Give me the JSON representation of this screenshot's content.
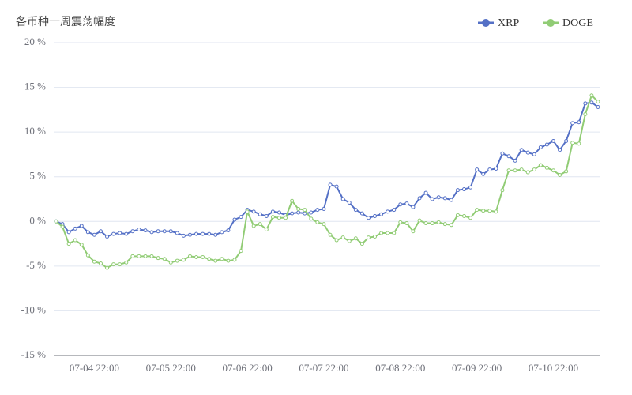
{
  "chart_data": {
    "type": "line",
    "title": "各币种一周震荡幅度",
    "categories": [
      null,
      null,
      null,
      null,
      null,
      null,
      "07-04 22:00",
      null,
      null,
      null,
      null,
      null,
      null,
      null,
      null,
      null,
      null,
      null,
      "07-05 22:00",
      null,
      null,
      null,
      null,
      null,
      null,
      null,
      null,
      null,
      null,
      null,
      "07-06 22:00",
      null,
      null,
      null,
      null,
      null,
      null,
      null,
      null,
      null,
      null,
      null,
      "07-07 22:00",
      null,
      null,
      null,
      null,
      null,
      null,
      null,
      null,
      null,
      null,
      null,
      "07-08 22:00",
      null,
      null,
      null,
      null,
      null,
      null,
      null,
      null,
      null,
      null,
      null,
      "07-09 22:00",
      null,
      null,
      null,
      null,
      null,
      null,
      null,
      null,
      null,
      null,
      null,
      "07-10 22:00",
      null,
      null,
      null,
      null,
      null,
      null,
      null
    ],
    "series": [
      {
        "name": "XRP",
        "color": "#5470c6",
        "values": [
          0,
          -0.3,
          -1.2,
          -0.8,
          -0.5,
          -1.2,
          -1.5,
          -1.1,
          -1.7,
          -1.4,
          -1.3,
          -1.4,
          -1.1,
          -0.9,
          -1.0,
          -1.2,
          -1.1,
          -1.1,
          -1.1,
          -1.3,
          -1.6,
          -1.5,
          -1.4,
          -1.4,
          -1.4,
          -1.5,
          -1.2,
          -1.0,
          0.2,
          0.5,
          1.3,
          1.1,
          0.8,
          0.6,
          1.1,
          1.0,
          0.7,
          0.9,
          1.0,
          0.9,
          1.0,
          1.3,
          1.4,
          4.1,
          3.9,
          2.5,
          2.1,
          1.3,
          0.9,
          0.4,
          0.6,
          0.8,
          1.1,
          1.3,
          1.9,
          2.0,
          1.6,
          2.6,
          3.2,
          2.5,
          2.7,
          2.6,
          2.4,
          3.5,
          3.6,
          3.8,
          5.8,
          5.3,
          5.8,
          5.9,
          7.6,
          7.3,
          6.8,
          8.0,
          7.7,
          7.5,
          8.3,
          8.6,
          9.0,
          8.0,
          9.0,
          11.0,
          11.1,
          13.2,
          13.3,
          12.8
        ]
      },
      {
        "name": "DOGE",
        "color": "#91cc75",
        "values": [
          0,
          -0.6,
          -2.5,
          -2.1,
          -2.6,
          -3.8,
          -4.5,
          -4.7,
          -5.2,
          -4.8,
          -4.8,
          -4.6,
          -3.9,
          -3.9,
          -3.9,
          -3.9,
          -4.1,
          -4.2,
          -4.6,
          -4.4,
          -4.3,
          -3.9,
          -4.0,
          -4.0,
          -4.2,
          -4.4,
          -4.2,
          -4.4,
          -4.3,
          -3.3,
          1.1,
          -0.5,
          -0.3,
          -0.9,
          0.5,
          0.4,
          0.4,
          2.3,
          1.4,
          1.3,
          0.3,
          -0.1,
          -0.3,
          -1.5,
          -2.1,
          -1.8,
          -2.2,
          -1.9,
          -2.5,
          -1.8,
          -1.7,
          -1.3,
          -1.3,
          -1.3,
          -0.1,
          -0.2,
          -1.1,
          0.1,
          -0.2,
          -0.2,
          -0.1,
          -0.3,
          -0.4,
          0.7,
          0.6,
          0.4,
          1.3,
          1.2,
          1.2,
          1.1,
          3.5,
          5.7,
          5.7,
          5.8,
          5.5,
          5.8,
          6.3,
          6.0,
          5.7,
          5.2,
          5.6,
          8.8,
          8.7,
          12.0,
          14.1,
          13.4
        ]
      }
    ],
    "ylim": [
      -15,
      20
    ],
    "yticks": [
      {
        "value": -15,
        "label": "-15 %"
      },
      {
        "value": -10,
        "label": "-10 %"
      },
      {
        "value": -5,
        "label": "-5 %"
      },
      {
        "value": 0,
        "label": "0 %"
      },
      {
        "value": 5,
        "label": "5 %"
      },
      {
        "value": 10,
        "label": "10 %"
      },
      {
        "value": 15,
        "label": "15 %"
      },
      {
        "value": 20,
        "label": "20 %"
      }
    ],
    "grid": true,
    "legend": "top-right"
  }
}
